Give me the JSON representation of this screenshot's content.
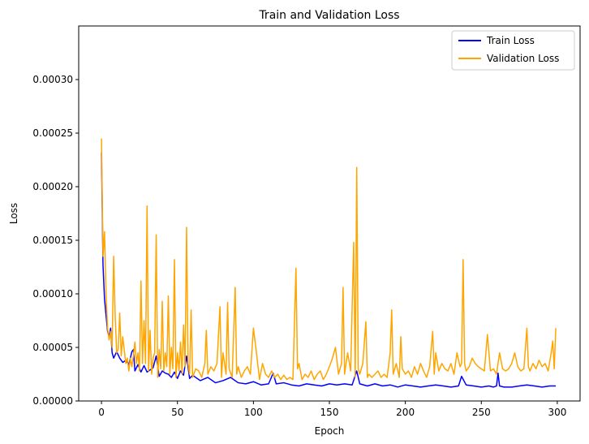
{
  "chart_data": {
    "type": "line",
    "title": "Train and Validation Loss",
    "xlabel": "Epoch",
    "ylabel": "Loss",
    "xlim": [
      -15,
      315
    ],
    "ylim": [
      0,
      0.00035
    ],
    "x_ticks": [
      0,
      50,
      100,
      150,
      200,
      250,
      300
    ],
    "y_ticks": [
      0,
      5e-05,
      0.0001,
      0.00015,
      0.0002,
      0.00025,
      0.0003
    ],
    "y_tick_labels": [
      "0.00000",
      "0.00005",
      "0.00010",
      "0.00015",
      "0.00020",
      "0.00025",
      "0.00030"
    ],
    "grid": false,
    "legend": "top-right",
    "series": [
      {
        "name": "Train Loss",
        "color": "#0000ff",
        "x": [
          0,
          1,
          2,
          3,
          4,
          5,
          6,
          7,
          8,
          10,
          12,
          14,
          16,
          18,
          20,
          21,
          22,
          24,
          26,
          28,
          30,
          32,
          34,
          36,
          38,
          40,
          42,
          44,
          46,
          48,
          50,
          52,
          54,
          56,
          58,
          60,
          65,
          70,
          75,
          80,
          85,
          90,
          95,
          100,
          105,
          110,
          113,
          115,
          120,
          125,
          130,
          135,
          140,
          145,
          150,
          155,
          160,
          165,
          168,
          170,
          175,
          180,
          185,
          190,
          195,
          200,
          205,
          210,
          215,
          220,
          225,
          230,
          235,
          237,
          240,
          245,
          250,
          255,
          258,
          260,
          261,
          262,
          265,
          270,
          275,
          280,
          285,
          290,
          295,
          299
        ],
        "values": [
          0.000232,
          0.000127,
          9.5e-05,
          8e-05,
          6.5e-05,
          6e-05,
          6.8e-05,
          4.5e-05,
          4e-05,
          4.6e-05,
          4e-05,
          3.6e-05,
          3.8e-05,
          3.4e-05,
          4.6e-05,
          4.8e-05,
          2.8e-05,
          3.4e-05,
          2.7e-05,
          3.3e-05,
          2.7e-05,
          2.9e-05,
          3.1e-05,
          4.2e-05,
          2.3e-05,
          2.8e-05,
          2.6e-05,
          2.5e-05,
          2.2e-05,
          2.7e-05,
          2.1e-05,
          2.8e-05,
          2.4e-05,
          4.2e-05,
          2.1e-05,
          2.4e-05,
          1.9e-05,
          2.2e-05,
          1.7e-05,
          1.9e-05,
          2.2e-05,
          1.7e-05,
          1.6e-05,
          1.8e-05,
          1.5e-05,
          1.6e-05,
          2.6e-05,
          1.6e-05,
          1.7e-05,
          1.5e-05,
          1.4e-05,
          1.6e-05,
          1.5e-05,
          1.4e-05,
          1.6e-05,
          1.5e-05,
          1.6e-05,
          1.5e-05,
          2.8e-05,
          1.6e-05,
          1.4e-05,
          1.6e-05,
          1.4e-05,
          1.5e-05,
          1.3e-05,
          1.5e-05,
          1.4e-05,
          1.3e-05,
          1.4e-05,
          1.5e-05,
          1.4e-05,
          1.3e-05,
          1.4e-05,
          2.3e-05,
          1.5e-05,
          1.4e-05,
          1.3e-05,
          1.4e-05,
          1.3e-05,
          1.4e-05,
          2.6e-05,
          1.4e-05,
          1.3e-05,
          1.3e-05,
          1.4e-05,
          1.5e-05,
          1.4e-05,
          1.3e-05,
          1.4e-05,
          1.4e-05
        ]
      },
      {
        "name": "Validation Loss",
        "color": "#ffa500",
        "x": [
          0,
          1,
          2,
          3,
          4,
          5,
          6,
          7,
          8,
          9,
          10,
          11,
          12,
          13,
          14,
          16,
          17,
          18,
          19,
          20,
          21,
          22,
          23,
          24,
          25,
          26,
          27,
          28,
          29,
          30,
          31,
          32,
          33,
          34,
          35,
          36,
          37,
          38,
          39,
          40,
          41,
          42,
          43,
          44,
          45,
          46,
          47,
          48,
          49,
          50,
          51,
          52,
          53,
          54,
          55,
          56,
          57,
          58,
          59,
          60,
          62,
          64,
          66,
          68,
          69,
          70,
          72,
          74,
          76,
          78,
          79,
          80,
          82,
          83,
          84,
          86,
          88,
          89,
          90,
          92,
          94,
          96,
          98,
          100,
          102,
          104,
          106,
          108,
          110,
          112,
          114,
          116,
          118,
          120,
          122,
          124,
          126,
          128,
          129,
          130,
          132,
          134,
          136,
          138,
          140,
          142,
          144,
          146,
          148,
          150,
          152,
          154,
          156,
          158,
          159,
          160,
          162,
          164,
          166,
          167,
          168,
          169,
          170,
          172,
          174,
          175,
          176,
          178,
          180,
          182,
          184,
          186,
          188,
          190,
          191,
          192,
          194,
          196,
          197,
          198,
          200,
          202,
          204,
          206,
          208,
          210,
          212,
          214,
          216,
          218,
          219,
          220,
          222,
          224,
          226,
          228,
          230,
          232,
          234,
          236,
          237,
          238,
          239,
          240,
          242,
          244,
          246,
          248,
          250,
          252,
          254,
          256,
          258,
          260,
          262,
          264,
          266,
          268,
          270,
          272,
          274,
          276,
          278,
          280,
          281,
          282,
          284,
          286,
          288,
          290,
          292,
          294,
          296,
          297,
          298,
          299
        ],
        "values": [
          0.000245,
          0.000135,
          0.000158,
          0.0001,
          6.8e-05,
          5.7e-05,
          6.5e-05,
          5e-05,
          0.000135,
          8e-05,
          4.5e-05,
          4.8e-05,
          8.2e-05,
          4.2e-05,
          6e-05,
          3.5e-05,
          4e-05,
          2.8e-05,
          4e-05,
          3.2e-05,
          4.2e-05,
          5.5e-05,
          3.5e-05,
          4.5e-05,
          2.8e-05,
          0.000112,
          3.5e-05,
          7.5e-05,
          3.5e-05,
          0.000182,
          2.8e-05,
          6.6e-05,
          2.5e-05,
          4e-05,
          4.5e-05,
          0.000155,
          2.2e-05,
          4.8e-05,
          3e-05,
          9.3e-05,
          2.8e-05,
          4.5e-05,
          3.2e-05,
          9.8e-05,
          2.5e-05,
          5e-05,
          3e-05,
          0.000132,
          2.2e-05,
          4.5e-05,
          2.8e-05,
          5.5e-05,
          2.5e-05,
          7.1e-05,
          3.2e-05,
          0.000162,
          3.5e-05,
          2.5e-05,
          8.5e-05,
          2.2e-05,
          3e-05,
          2.8e-05,
          2.2e-05,
          3.5e-05,
          6.6e-05,
          2.5e-05,
          3.2e-05,
          2.8e-05,
          3.5e-05,
          8.8e-05,
          2.2e-05,
          4.5e-05,
          2.5e-05,
          9.2e-05,
          3e-05,
          2.2e-05,
          0.000106,
          2.5e-05,
          3.2e-05,
          2.2e-05,
          2.8e-05,
          3.2e-05,
          2.5e-05,
          6.8e-05,
          4.5e-05,
          2e-05,
          3.5e-05,
          2.5e-05,
          2.2e-05,
          2.8e-05,
          2.2e-05,
          2.5e-05,
          2e-05,
          2.4e-05,
          2e-05,
          2.2e-05,
          2e-05,
          0.000124,
          3e-05,
          3.5e-05,
          2e-05,
          2.5e-05,
          2.2e-05,
          2.8e-05,
          2e-05,
          2.5e-05,
          2.8e-05,
          2e-05,
          2.5e-05,
          3.2e-05,
          4e-05,
          5e-05,
          2.5e-05,
          3.5e-05,
          0.000106,
          2.5e-05,
          4.5e-05,
          2.8e-05,
          0.000148,
          2.2e-05,
          0.000218,
          3e-05,
          2.5e-05,
          3.5e-05,
          7.4e-05,
          2.2e-05,
          2.5e-05,
          2.2e-05,
          2.5e-05,
          2.8e-05,
          2.2e-05,
          2.5e-05,
          2.2e-05,
          4.5e-05,
          8.5e-05,
          2.5e-05,
          3.5e-05,
          2.2e-05,
          6e-05,
          3e-05,
          2.5e-05,
          2.8e-05,
          2.2e-05,
          3.2e-05,
          2.5e-05,
          3.5e-05,
          2.8e-05,
          2.2e-05,
          3.2e-05,
          6.5e-05,
          2.5e-05,
          4.5e-05,
          2.8e-05,
          3.5e-05,
          3e-05,
          2.8e-05,
          3.5e-05,
          2.5e-05,
          4.5e-05,
          3.2e-05,
          3.5e-05,
          0.000132,
          3.5e-05,
          2.8e-05,
          3.2e-05,
          4e-05,
          3.5e-05,
          3.2e-05,
          3e-05,
          2.8e-05,
          6.2e-05,
          2.8e-05,
          3e-05,
          2.5e-05,
          4.5e-05,
          3e-05,
          2.8e-05,
          3e-05,
          3.5e-05,
          4.5e-05,
          3.2e-05,
          2.8e-05,
          3e-05,
          6.8e-05,
          3.2e-05,
          2.8e-05,
          3.5e-05,
          3e-05,
          3.8e-05,
          3.2e-05,
          3.5e-05,
          2.8e-05,
          4.5e-05,
          5.6e-05,
          3e-05,
          6.8e-05
        ]
      }
    ]
  }
}
